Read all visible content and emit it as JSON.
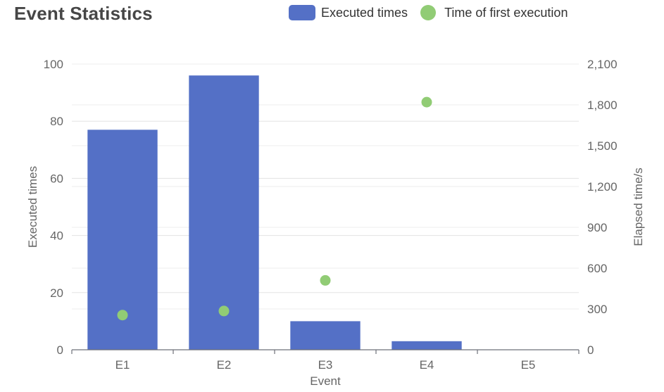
{
  "chart_data": {
    "type": "bar",
    "title": "Event Statistics",
    "categories": [
      "E1",
      "E2",
      "E3",
      "E4",
      "E5"
    ],
    "xlabel": "Event",
    "ylabel_left": "Executed times",
    "ylabel_right": "Elapsed time/s",
    "ylim_left": [
      0,
      100
    ],
    "ylim_right": [
      0,
      2100
    ],
    "yticks_left": [
      "0",
      "20",
      "40",
      "60",
      "80",
      "100"
    ],
    "yticks_right": [
      "0",
      "300",
      "600",
      "900",
      "1,200",
      "1,500",
      "1,800",
      "2,100"
    ],
    "grid": true,
    "legend_position": "top-right",
    "series": [
      {
        "name": "Executed times",
        "type": "bar",
        "axis": "left",
        "color": "#5470c6",
        "values": [
          77,
          96,
          10,
          3,
          0
        ]
      },
      {
        "name": "Time of first execution",
        "type": "scatter",
        "axis": "right",
        "color": "#91cc75",
        "values": [
          255,
          285,
          510,
          1820,
          null
        ]
      }
    ]
  }
}
